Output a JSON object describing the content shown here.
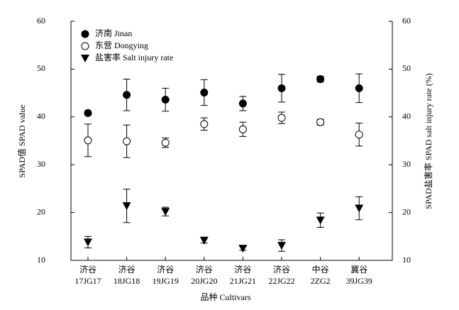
{
  "chart_data": {
    "type": "errorbar",
    "xlabel": "品种 Cultivars",
    "ylabel": "SPAD值 SPAD value",
    "y2label": "SPAD盐害率 SPAD salt injury rate (%)",
    "categories": [
      [
        "济谷",
        "17JG17"
      ],
      [
        "济谷",
        "18JG18"
      ],
      [
        "济谷",
        "19JG19"
      ],
      [
        "济谷",
        "20JG20"
      ],
      [
        "济谷",
        "21JG21"
      ],
      [
        "济谷",
        "22JG22"
      ],
      [
        "中谷",
        "2ZG2"
      ],
      [
        "冀谷",
        "39JG39"
      ]
    ],
    "ylim": [
      10,
      60
    ],
    "yticks": [
      10,
      20,
      30,
      40,
      50,
      60
    ],
    "y2lim": [
      10,
      60
    ],
    "y2ticks": [
      10,
      20,
      30,
      40,
      50,
      60
    ],
    "legend": "upper left",
    "series": [
      {
        "name": "济南 Jinan",
        "marker": "filled-circle",
        "color": "#000000",
        "values": [
          40.8,
          44.6,
          43.6,
          45.1,
          42.8,
          46.0,
          47.9,
          46.0
        ],
        "errors": [
          0.4,
          3.3,
          2.4,
          2.7,
          1.5,
          2.9,
          0.6,
          3.0
        ]
      },
      {
        "name": "东营 Dongying",
        "marker": "open-circle",
        "color": "#000000",
        "values": [
          35.1,
          34.9,
          34.6,
          38.5,
          37.4,
          39.8,
          38.9,
          36.3
        ],
        "errors": [
          3.4,
          3.4,
          1.0,
          1.3,
          1.5,
          1.2,
          0.6,
          2.4
        ]
      },
      {
        "name": "盐害率 Salt injury rate",
        "marker": "triangle-down",
        "color": "#000000",
        "axis": "y2",
        "values": [
          13.8,
          21.4,
          20.2,
          14.2,
          12.5,
          13.1,
          18.4,
          20.9
        ],
        "errors": [
          1.2,
          3.5,
          0.9,
          0.6,
          0.4,
          1.2,
          1.5,
          2.4
        ]
      }
    ]
  }
}
